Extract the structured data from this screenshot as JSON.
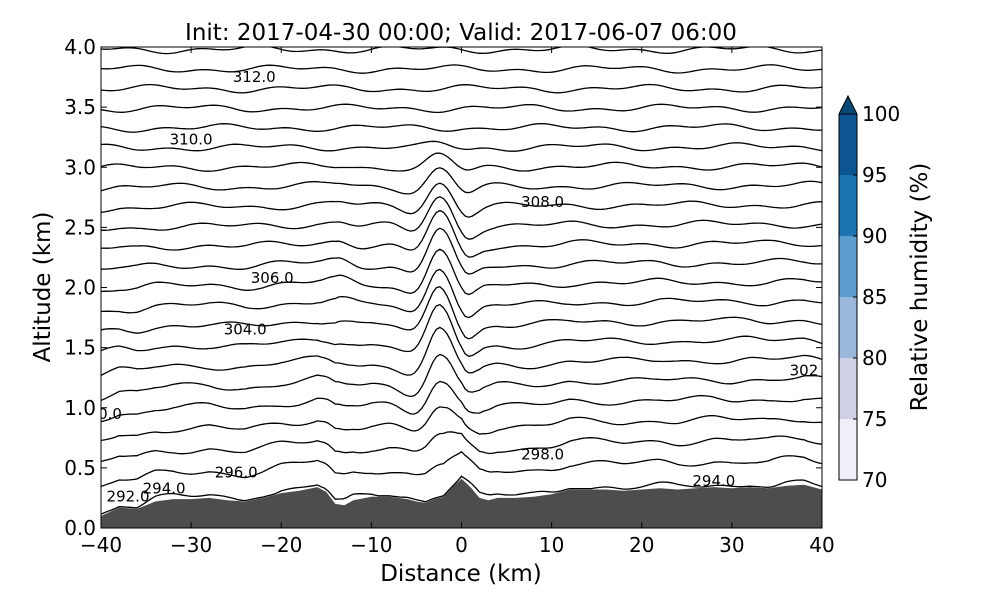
{
  "chart_data": {
    "type": "contour",
    "title": "Init: 2017-04-30 00:00; Valid: 2017-06-07 06:00",
    "xlabel": "Distance (km)",
    "ylabel": "Altitude (km)",
    "xlim": [
      -40,
      40
    ],
    "ylim": [
      0.0,
      4.0
    ],
    "xticks": [
      "−40",
      "−30",
      "−20",
      "−10",
      "0",
      "10",
      "20",
      "30",
      "40"
    ],
    "xtick_values": [
      -40,
      -30,
      -20,
      -10,
      0,
      10,
      20,
      30,
      40
    ],
    "yticks": [
      "0.0",
      "0.5",
      "1.0",
      "1.5",
      "2.0",
      "2.5",
      "3.0",
      "3.5",
      "4.0"
    ],
    "ytick_values": [
      0,
      0.5,
      1,
      1.5,
      2,
      2.5,
      3,
      3.5,
      4
    ],
    "terrain_color": "#4d4d4d",
    "terrain": {
      "x": [
        -40,
        -38,
        -36,
        -35,
        -34,
        -32,
        -30,
        -28,
        -26,
        -24,
        -22,
        -20,
        -18,
        -16,
        -15,
        -14,
        -13,
        -12,
        -10,
        -8,
        -6,
        -5,
        -4,
        -3,
        -2,
        -1,
        0,
        1,
        2,
        3,
        4,
        6,
        8,
        10,
        12,
        14,
        16,
        18,
        20,
        22,
        24,
        26,
        28,
        30,
        32,
        34,
        36,
        38,
        40
      ],
      "y": [
        0.1,
        0.17,
        0.16,
        0.19,
        0.22,
        0.24,
        0.24,
        0.25,
        0.23,
        0.22,
        0.25,
        0.29,
        0.31,
        0.34,
        0.3,
        0.2,
        0.19,
        0.23,
        0.26,
        0.26,
        0.24,
        0.22,
        0.21,
        0.24,
        0.26,
        0.34,
        0.41,
        0.34,
        0.25,
        0.23,
        0.25,
        0.25,
        0.26,
        0.28,
        0.32,
        0.32,
        0.32,
        0.31,
        0.32,
        0.33,
        0.32,
        0.33,
        0.34,
        0.33,
        0.34,
        0.33,
        0.35,
        0.36,
        0.32
      ]
    },
    "contour_levels": [
      292,
      293,
      294,
      295,
      296,
      297,
      298,
      299,
      300,
      301,
      302,
      303,
      304,
      305,
      306,
      307,
      308,
      309,
      310,
      311,
      312,
      313,
      314
    ],
    "contour_labels": [
      {
        "text": "292.0",
        "x": -37,
        "y": 0.26
      },
      {
        "text": "294.0",
        "x": -33,
        "y": 0.33
      },
      {
        "text": "296.0",
        "x": -25,
        "y": 0.46
      },
      {
        "text": "0.0",
        "x": -39,
        "y": 0.95
      },
      {
        "text": "298.0",
        "x": 9,
        "y": 0.61
      },
      {
        "text": "294.0",
        "x": 28,
        "y": 0.39
      },
      {
        "text": "302",
        "x": 38,
        "y": 1.31
      },
      {
        "text": "304.0",
        "x": -24,
        "y": 1.65
      },
      {
        "text": "306.0",
        "x": -21,
        "y": 2.08
      },
      {
        "text": "308.0",
        "x": 9,
        "y": 2.71
      },
      {
        "text": "310.0",
        "x": -30,
        "y": 3.23
      },
      {
        "text": "312.0",
        "x": -23,
        "y": 3.75
      }
    ],
    "colorbar": {
      "label": "Relative humidity (%)",
      "ticks": [
        "70",
        "75",
        "80",
        "85",
        "90",
        "95",
        "100"
      ],
      "tick_values": [
        70,
        75,
        80,
        85,
        90,
        95,
        100
      ],
      "colors": [
        "#f0eef6",
        "#cfd0e8",
        "#9bb8da",
        "#5b9ecd",
        "#1d74b3",
        "#0c5591"
      ],
      "extend_color": "#084876",
      "extend": "max"
    }
  }
}
